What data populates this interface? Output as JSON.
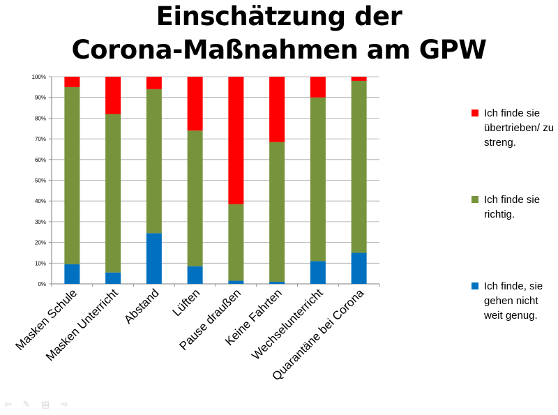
{
  "title": {
    "line1": "Einschätzung der",
    "line2": "Corona-Maßnahmen am GPW"
  },
  "legend": [
    {
      "label": "Ich finde sie übertrieben/ zu streng.",
      "color": "#ff0000"
    },
    {
      "label": "Ich finde sie richtig.",
      "color": "#77933c"
    },
    {
      "label": "Ich finde, sie gehen nicht weit genug.",
      "color": "#0070c0"
    }
  ],
  "chart_data": {
    "type": "bar",
    "stacked": true,
    "categories": [
      "Masken Schule",
      "Masken Unterricht",
      "Abstand",
      "Lüften",
      "Pause draußen",
      "Keine Fahrten",
      "Wechselunterricht",
      "Quarantäne bei Corona"
    ],
    "series": [
      {
        "name": "Ich finde, sie gehen nicht weit genug.",
        "color": "#0070c0",
        "values": [
          9.5,
          5.5,
          24.5,
          8.5,
          1.5,
          1,
          11,
          15
        ]
      },
      {
        "name": "Ich finde sie richtig.",
        "color": "#77933c",
        "values": [
          85.5,
          76.5,
          69.5,
          65.5,
          37,
          67.5,
          79,
          83
        ]
      },
      {
        "name": "Ich finde sie übertrieben/ zu streng.",
        "color": "#ff0000",
        "values": [
          5,
          18,
          6,
          26,
          61.5,
          31.5,
          10,
          2
        ]
      }
    ],
    "yticks": [
      "0%",
      "10%",
      "20%",
      "30%",
      "40%",
      "50%",
      "60%",
      "70%",
      "80%",
      "90%",
      "100%"
    ],
    "ylim": [
      0,
      100
    ],
    "grid": true,
    "legend_position": "right"
  },
  "controls": {
    "icons": [
      "arrow-left-icon",
      "pen-icon",
      "menu-icon",
      "arrow-right-icon"
    ],
    "glyphs": "⇦ ✎ ▤ ⇨"
  }
}
